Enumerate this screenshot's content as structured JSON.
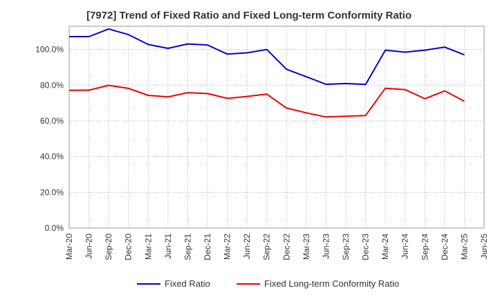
{
  "chart_data": {
    "type": "line",
    "title": "[7972]  Trend of Fixed Ratio and Fixed Long-term Conformity Ratio",
    "xlabel": "",
    "ylabel": "",
    "categories": [
      "Mar-20",
      "Jun-20",
      "Sep-20",
      "Dec-20",
      "Mar-21",
      "Jun-21",
      "Sep-21",
      "Dec-21",
      "Mar-22",
      "Jun-22",
      "Sep-22",
      "Dec-22",
      "Mar-23",
      "Jun-23",
      "Sep-23",
      "Dec-23",
      "Mar-24",
      "Jun-24",
      "Sep-24",
      "Dec-24",
      "Mar-25",
      "Jun-25"
    ],
    "y_ticks": [
      "0.0%",
      "20.0%",
      "40.0%",
      "60.0%",
      "80.0%",
      "100.0%"
    ],
    "ylim": [
      0,
      113
    ],
    "grid": true,
    "legend_position": "bottom",
    "series": [
      {
        "name": "Fixed Ratio",
        "color": "#0000cc",
        "values": [
          107.2,
          107.2,
          111.5,
          108.3,
          102.8,
          100.6,
          103.1,
          102.5,
          97.4,
          98.1,
          100.0,
          88.9,
          84.7,
          80.5,
          80.9,
          80.4,
          99.6,
          98.5,
          99.6,
          101.3,
          97.0,
          null
        ]
      },
      {
        "name": "Fixed Long-term Conformity Ratio",
        "color": "#ee0000",
        "values": [
          77.1,
          77.2,
          79.9,
          78.2,
          74.3,
          73.4,
          75.8,
          75.3,
          72.6,
          73.7,
          75.0,
          67.2,
          64.5,
          62.2,
          62.6,
          63.0,
          78.3,
          77.5,
          72.4,
          76.8,
          71.0,
          null
        ]
      }
    ]
  }
}
